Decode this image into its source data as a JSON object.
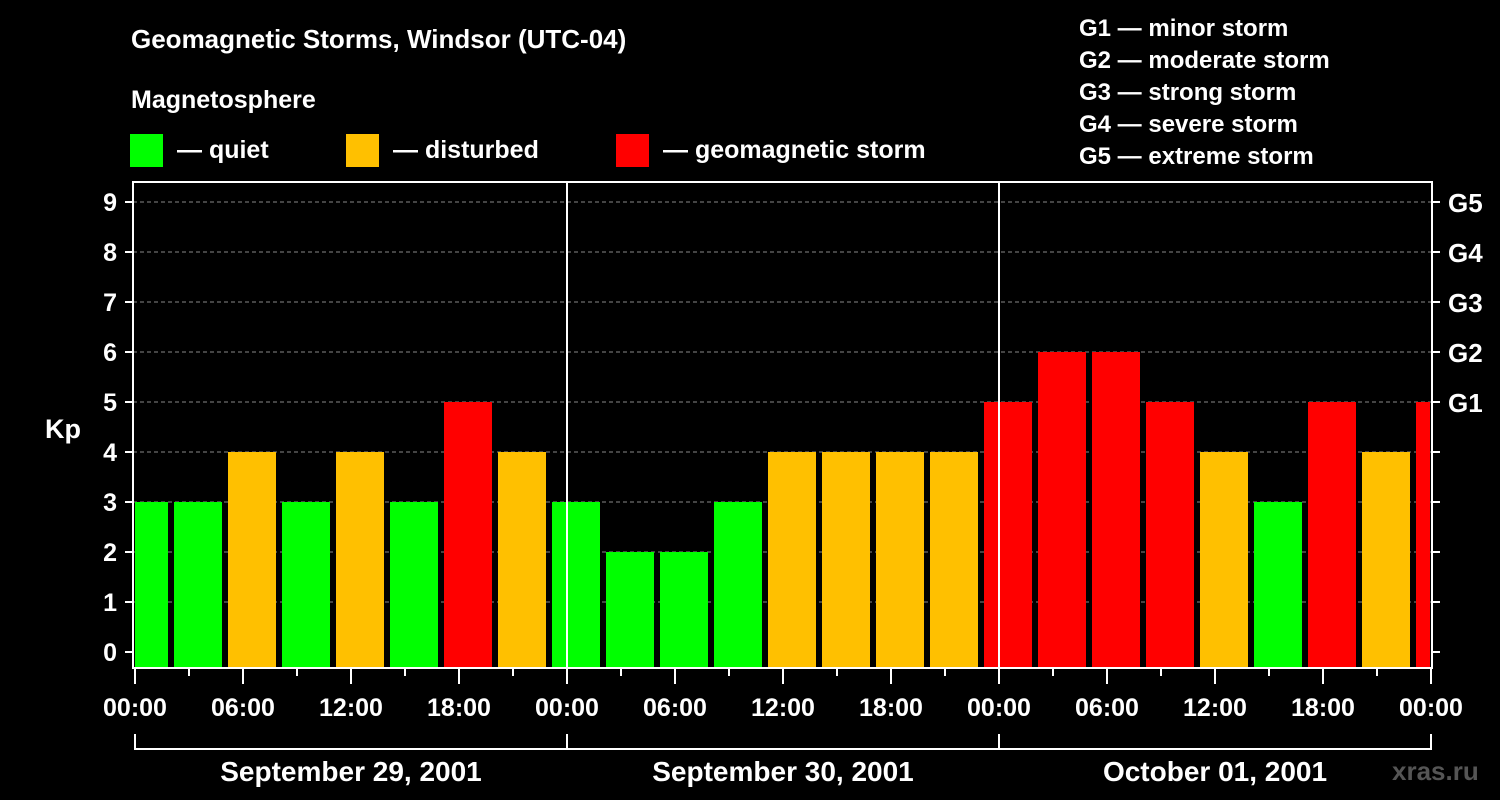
{
  "title": "Geomagnetic Storms, Windsor (UTC-04)",
  "magnetosphere_label": "Magnetosphere",
  "legend": [
    {
      "label": "— quiet",
      "color": "#00ff00"
    },
    {
      "label": "— disturbed",
      "color": "#ffc000"
    },
    {
      "label": "— geomagnetic storm",
      "color": "#ff0000"
    }
  ],
  "g_scale": [
    "G1 — minor storm",
    "G2 — moderate storm",
    "G3 — strong storm",
    "G4 — severe storm",
    "G5 — extreme storm"
  ],
  "watermark": "xras.ru",
  "chart_data": {
    "type": "bar",
    "title": "Geomagnetic Storms, Windsor (UTC-04)",
    "ylabel": "Kp",
    "ylim": [
      0,
      9
    ],
    "yticks": [
      0,
      1,
      2,
      3,
      4,
      5,
      6,
      7,
      8,
      9
    ],
    "right_ticks": [
      {
        "kp": 5,
        "label": "G1"
      },
      {
        "kp": 6,
        "label": "G2"
      },
      {
        "kp": 7,
        "label": "G3"
      },
      {
        "kp": 8,
        "label": "G4"
      },
      {
        "kp": 9,
        "label": "G5"
      }
    ],
    "xrange_hours": [
      0,
      72
    ],
    "xtick_labels": [
      "00:00",
      "06:00",
      "12:00",
      "18:00",
      "00:00",
      "06:00",
      "12:00",
      "18:00",
      "00:00",
      "06:00",
      "12:00",
      "18:00",
      "00:00"
    ],
    "days": [
      "September 29, 2001",
      "September 30, 2001",
      "October 01, 2001"
    ],
    "bar_center_hours": [
      0.5,
      3.5,
      6.5,
      9.5,
      12.5,
      15.5,
      18.5,
      21.5,
      24.5,
      27.5,
      30.5,
      33.5,
      36.5,
      39.5,
      42.5,
      45.5,
      48.5,
      51.5,
      54.5,
      57.5,
      60.5,
      63.5,
      66.5,
      69.5,
      72.5
    ],
    "values": [
      3,
      3,
      4,
      3,
      4,
      3,
      5,
      4,
      3,
      2,
      2,
      3,
      4,
      4,
      4,
      4,
      5,
      6,
      6,
      5,
      4,
      3,
      5,
      4,
      5
    ],
    "grid": true,
    "colors": {
      "quiet": "#00ff00",
      "disturbed": "#ffc000",
      "storm": "#ff0000"
    }
  }
}
